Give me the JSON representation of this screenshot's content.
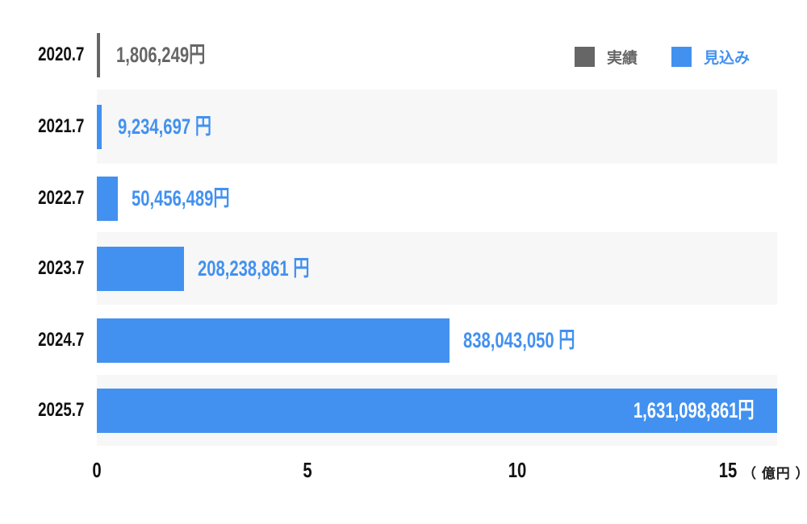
{
  "colors": {
    "actual": "#666666",
    "forecast": "#4291f0",
    "stripe": "#f7f7f7"
  },
  "chart_data": {
    "type": "bar",
    "orientation": "horizontal",
    "categories": [
      "2020.7",
      "2021.7",
      "2022.7",
      "2023.7",
      "2024.7",
      "2025.7"
    ],
    "values": [
      1806249,
      9234697,
      50456489,
      208238861,
      838043050,
      1631098861
    ],
    "value_labels": [
      "1,806,249円",
      "9,234,697 円",
      "50,456,489円",
      "208,238,861 円",
      "838,043,050 円",
      "1,631,098,861円"
    ],
    "series_type": [
      "actual",
      "forecast",
      "forecast",
      "forecast",
      "forecast",
      "forecast"
    ],
    "legend": [
      {
        "name": "実績",
        "key": "actual"
      },
      {
        "name": "見込み",
        "key": "forecast"
      }
    ],
    "legend_position": "top-right",
    "x_ticks": [
      "0",
      "5",
      "10",
      "15"
    ],
    "x_unit": "（ 億円 ）",
    "xlim": [
      0,
      16.2
    ],
    "grid": false
  }
}
